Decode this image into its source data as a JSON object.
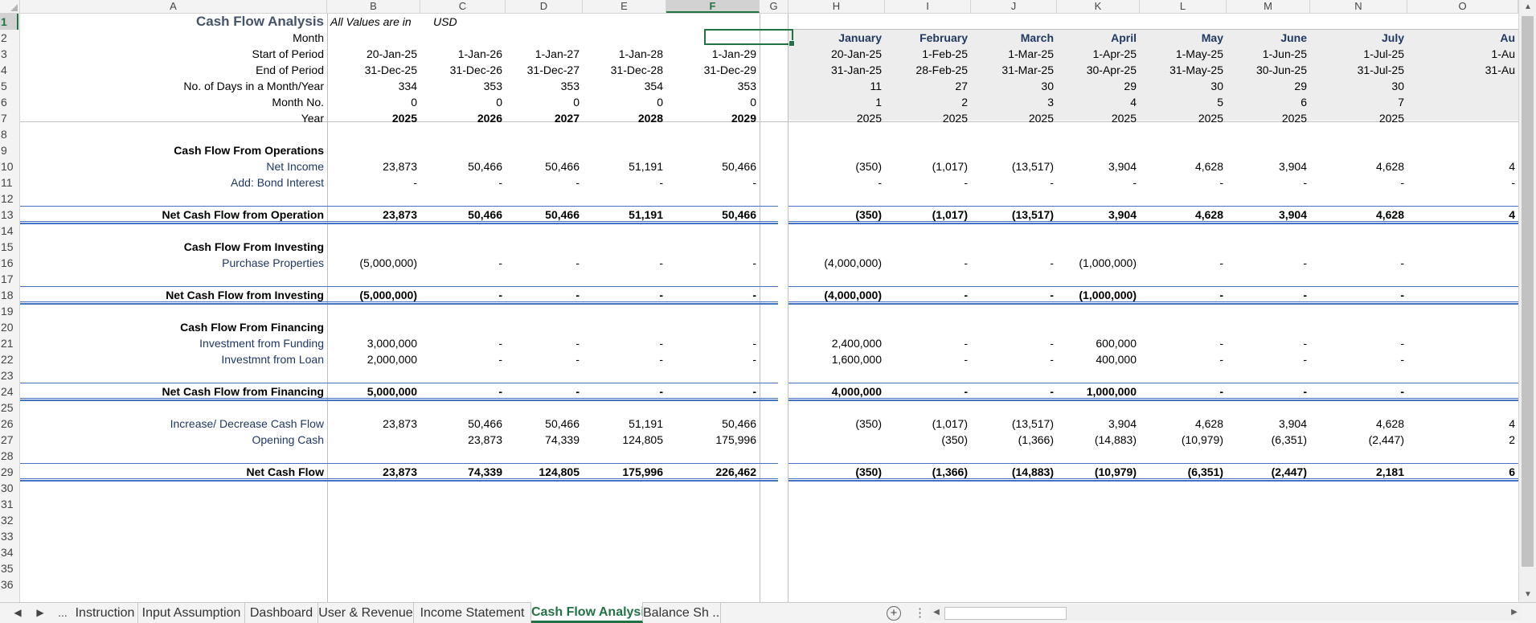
{
  "sheet": {
    "columns": [
      "A",
      "B",
      "C",
      "D",
      "E",
      "F",
      "G",
      "H",
      "I",
      "J",
      "K",
      "L",
      "M",
      "N",
      "O"
    ],
    "selected_column": "F",
    "selected_row": 1,
    "row_numbers": [
      "1",
      "2",
      "3",
      "4",
      "5",
      "6",
      "7",
      "8",
      "9",
      "10",
      "11",
      "12",
      "13",
      "14",
      "15",
      "16",
      "17",
      "18",
      "19",
      "20",
      "21",
      "22",
      "23",
      "24",
      "25",
      "26",
      "27",
      "28",
      "29",
      "30",
      "31",
      "32",
      "33",
      "34",
      "35",
      "36"
    ],
    "title": "Cash Flow Analysis",
    "units_note": "All Values are in",
    "currency": "USD",
    "header_rows": [
      {
        "label": "Month",
        "annual": [
          "",
          "",
          "",
          "",
          ""
        ],
        "monthly": [
          "January",
          "February",
          "March",
          "April",
          "May",
          "June",
          "July",
          "Au"
        ]
      },
      {
        "label": "Start of Period",
        "annual": [
          "20-Jan-25",
          "1-Jan-26",
          "1-Jan-27",
          "1-Jan-28",
          "1-Jan-29"
        ],
        "monthly": [
          "20-Jan-25",
          "1-Feb-25",
          "1-Mar-25",
          "1-Apr-25",
          "1-May-25",
          "1-Jun-25",
          "1-Jul-25",
          "1-Au"
        ]
      },
      {
        "label": "End of Period",
        "annual": [
          "31-Dec-25",
          "31-Dec-26",
          "31-Dec-27",
          "31-Dec-28",
          "31-Dec-29"
        ],
        "monthly": [
          "31-Jan-25",
          "28-Feb-25",
          "31-Mar-25",
          "30-Apr-25",
          "31-May-25",
          "30-Jun-25",
          "31-Jul-25",
          "31-Au"
        ]
      },
      {
        "label": "No. of Days in a Month/Year",
        "annual": [
          "334",
          "353",
          "353",
          "354",
          "353"
        ],
        "monthly": [
          "11",
          "27",
          "30",
          "29",
          "30",
          "29",
          "30",
          ""
        ]
      },
      {
        "label": "Month No.",
        "annual": [
          "0",
          "0",
          "0",
          "0",
          "0"
        ],
        "monthly": [
          "1",
          "2",
          "3",
          "4",
          "5",
          "6",
          "7",
          ""
        ]
      },
      {
        "label": "Year",
        "annual": [
          "2025",
          "2026",
          "2027",
          "2028",
          "2029"
        ],
        "monthly": [
          "2025",
          "2025",
          "2025",
          "2025",
          "2025",
          "2025",
          "2025",
          ""
        ]
      }
    ],
    "sections": {
      "operations": {
        "heading": "Cash Flow From Operations",
        "lines": [
          {
            "label": "Net Income",
            "annual": [
              "23,873",
              "50,466",
              "50,466",
              "51,191",
              "50,466"
            ],
            "monthly": [
              "(350)",
              "(1,017)",
              "(13,517)",
              "3,904",
              "4,628",
              "3,904",
              "4,628",
              "4"
            ]
          },
          {
            "label": "Add: Bond Interest",
            "annual": [
              "-",
              "-",
              "-",
              "-",
              "-"
            ],
            "monthly": [
              "-",
              "-",
              "-",
              "-",
              "-",
              "-",
              "-",
              "-"
            ]
          }
        ],
        "total": {
          "label": "Net Cash Flow from Operation",
          "annual": [
            "23,873",
            "50,466",
            "50,466",
            "51,191",
            "50,466"
          ],
          "monthly": [
            "(350)",
            "(1,017)",
            "(13,517)",
            "3,904",
            "4,628",
            "3,904",
            "4,628",
            "4"
          ]
        }
      },
      "investing": {
        "heading": "Cash Flow From Investing",
        "lines": [
          {
            "label": "Purchase Properties",
            "annual": [
              "(5,000,000)",
              "-",
              "-",
              "-",
              "-"
            ],
            "monthly": [
              "(4,000,000)",
              "-",
              "-",
              "(1,000,000)",
              "-",
              "-",
              "-",
              ""
            ]
          }
        ],
        "total": {
          "label": "Net Cash Flow from Investing",
          "annual": [
            "(5,000,000)",
            "-",
            "-",
            "-",
            "-"
          ],
          "monthly": [
            "(4,000,000)",
            "-",
            "-",
            "(1,000,000)",
            "-",
            "-",
            "-",
            ""
          ]
        }
      },
      "financing": {
        "heading": "Cash Flow From Financing",
        "lines": [
          {
            "label": "Investment from Funding",
            "annual": [
              "3,000,000",
              "-",
              "-",
              "-",
              "-"
            ],
            "monthly": [
              "2,400,000",
              "-",
              "-",
              "600,000",
              "-",
              "-",
              "-",
              ""
            ]
          },
          {
            "label": "Investmnt from Loan",
            "annual": [
              "2,000,000",
              "-",
              "-",
              "-",
              "-"
            ],
            "monthly": [
              "1,600,000",
              "-",
              "-",
              "400,000",
              "-",
              "-",
              "-",
              ""
            ]
          }
        ],
        "total": {
          "label": "Net Cash Flow from Financing",
          "annual": [
            "5,000,000",
            "-",
            "-",
            "-",
            "-"
          ],
          "monthly": [
            "4,000,000",
            "-",
            "-",
            "1,000,000",
            "-",
            "-",
            "-",
            ""
          ]
        }
      }
    },
    "summary": {
      "increase": {
        "label": "Increase/ Decrease Cash Flow",
        "annual": [
          "23,873",
          "50,466",
          "50,466",
          "51,191",
          "50,466"
        ],
        "monthly": [
          "(350)",
          "(1,017)",
          "(13,517)",
          "3,904",
          "4,628",
          "3,904",
          "4,628",
          "4"
        ]
      },
      "opening": {
        "label": "Opening Cash",
        "annual": [
          "",
          "23,873",
          "74,339",
          "124,805",
          "175,996"
        ],
        "monthly": [
          "",
          "(350)",
          "(1,366)",
          "(14,883)",
          "(10,979)",
          "(6,351)",
          "(2,447)",
          "2"
        ]
      },
      "net": {
        "label": "Net Cash Flow",
        "annual": [
          "23,873",
          "74,339",
          "124,805",
          "175,996",
          "226,462"
        ],
        "monthly": [
          "(350)",
          "(1,366)",
          "(14,883)",
          "(10,979)",
          "(6,351)",
          "(2,447)",
          "2,181",
          "6"
        ]
      }
    }
  },
  "tabs": {
    "nav_ellipsis": "...",
    "sheets": [
      "Instruction",
      "Input Assumption",
      "Dashboard",
      "User & Revenue",
      "Income Statement",
      "Cash Flow Analysis",
      "Balance Sh ..."
    ],
    "active": "Cash Flow Analysis",
    "add_sheet_glyph": "+",
    "split_glyph": "⋮"
  },
  "colors": {
    "accent_green": "#217346",
    "label_blue": "#1f3864",
    "total_line_blue": "#4472c4",
    "monthly_shade": "#ededed"
  }
}
